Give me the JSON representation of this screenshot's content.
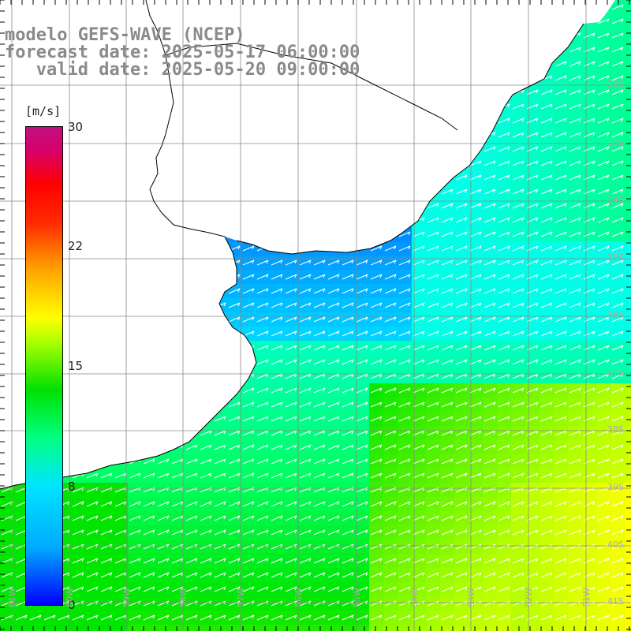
{
  "title": {
    "line1": "modelo GEFS-WAVE (NCEP)",
    "line2": "forecast date: 2025-05-17 06:00:00",
    "line3": "   valid date: 2025-05-20 09:00:00"
  },
  "colorbar": {
    "unit": "[m/s]",
    "ticks": [
      "30",
      "22",
      "15",
      "8",
      "0"
    ],
    "tick_values": [
      30,
      22,
      15,
      8,
      0
    ],
    "min": 0,
    "max": 30
  },
  "lat_labels": [
    "32S",
    "33S",
    "34S",
    "35S",
    "36S",
    "37S",
    "38S",
    "39S",
    "40S",
    "41S"
  ],
  "lon_labels": [
    "61W",
    "60W",
    "59W",
    "58W",
    "57W",
    "56W",
    "55W",
    "54W",
    "53W",
    "52W",
    "51W"
  ],
  "colors": {
    "land": "#ffffff",
    "grid": "#888888",
    "coast": "#000000",
    "arrow": "#ffffff",
    "title": "#8a8a8a"
  },
  "field": {
    "variable": "wind speed",
    "units": "m/s",
    "regions_speed": {
      "rio_de_la_plata": 5,
      "uruguay_shelf": 8,
      "argentine_shelf_north": 9,
      "argentine_shelf_south": 13,
      "offshore_southeast": 16
    }
  }
}
